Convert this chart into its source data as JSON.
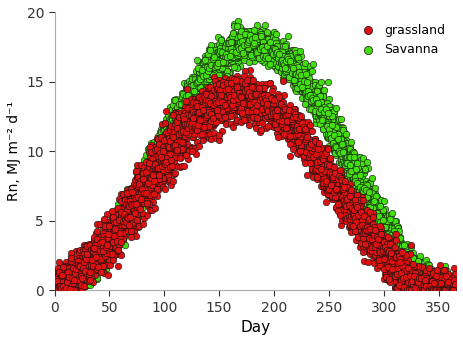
{
  "title": "",
  "xlabel": "Day",
  "ylabel": "Rn, MJ m⁻² d⁻¹",
  "xlim": [
    0,
    366
  ],
  "ylim": [
    0,
    20
  ],
  "xticks": [
    0,
    50,
    100,
    150,
    200,
    250,
    300,
    350
  ],
  "yticks": [
    0,
    5,
    10,
    15,
    20
  ],
  "grassland_color": "#dd1111",
  "savanna_color": "#44dd11",
  "marker_size": 22,
  "marker_edge_color": "#111111",
  "marker_edge_width": 0.4,
  "legend_labels": [
    "grassland",
    "Savanna"
  ],
  "seed": 42,
  "n_days": 365,
  "n_years": 11,
  "grassland_peak": 14.0,
  "grassland_peak_day": 168,
  "savanna_peak": 17.8,
  "savanna_peak_day": 180,
  "grassland_noise": 1.3,
  "savanna_noise": 1.0,
  "background_color": "#ffffff",
  "spine_color": "#aaaaaa"
}
